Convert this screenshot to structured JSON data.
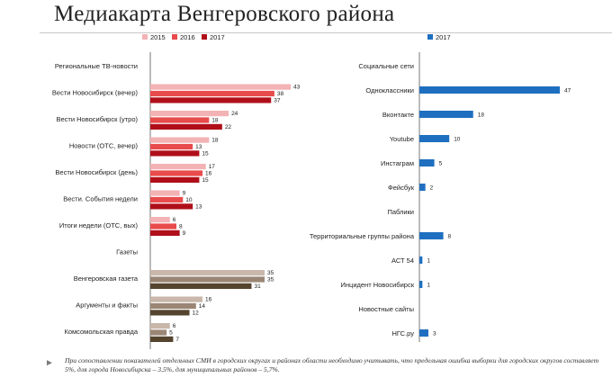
{
  "title": "Медиакарта Венгеровского района",
  "footnote": "При сопоставлении показателей отдельных СМИ в городских округах и районах области необходимо учитывать, что предельная ошибка выборки для городских округов составляет 5%, для города Новосибирска – 3,5%, для муниципальных районов – 5,7%.",
  "chart_data": [
    {
      "type": "bar",
      "orientation": "horizontal",
      "title": "",
      "legend": [
        "2015",
        "2016",
        "2017"
      ],
      "legend_colors": [
        "#f3b2b4",
        "#e84b4b",
        "#b00f1a"
      ],
      "alt_colors": [
        "#c8b7aa",
        "#9a8674",
        "#55452f"
      ],
      "scale_max": 43,
      "categories": [
        {
          "label": "Региональные ТВ-новости",
          "header": true
        },
        {
          "label": "Вести Новосибирск (вечер)",
          "values": [
            43,
            38,
            37
          ]
        },
        {
          "label": "Вести Новосибирск (утро)",
          "values": [
            24,
            18,
            22
          ]
        },
        {
          "label": "Новости (ОТС, вечер)",
          "values": [
            18,
            13,
            15
          ]
        },
        {
          "label": "Вести Новосибирск (день)",
          "values": [
            17,
            16,
            15
          ]
        },
        {
          "label": "Вести. События недели",
          "values": [
            9,
            10,
            13
          ]
        },
        {
          "label": "Итоги недели (ОТС, вых)",
          "values": [
            6,
            8,
            9
          ]
        },
        {
          "label": "Газеты",
          "header": true
        },
        {
          "label": "Венгеровская газета",
          "values": [
            35,
            35,
            31
          ],
          "alt": true
        },
        {
          "label": "Аргументы и факты",
          "values": [
            16,
            14,
            12
          ],
          "alt": true
        },
        {
          "label": "Комсомольская правда",
          "values": [
            6,
            5,
            7
          ],
          "alt": true
        }
      ]
    },
    {
      "type": "bar",
      "orientation": "horizontal",
      "title": "",
      "legend": [
        "2017"
      ],
      "legend_colors": [
        "#1f6fc0"
      ],
      "scale_max": 47,
      "categories": [
        {
          "label": "Социальные сети",
          "header": true
        },
        {
          "label": "Одноклассники",
          "value": 47
        },
        {
          "label": "Вконтакте",
          "value": 18
        },
        {
          "label": "Youtube",
          "value": 10
        },
        {
          "label": "Инстаграм",
          "value": 5
        },
        {
          "label": "Фейсбук",
          "value": 2
        },
        {
          "label": "Паблики",
          "header": true
        },
        {
          "label": "Территориальные группы района",
          "value": 8
        },
        {
          "label": "АСТ 54",
          "value": 1
        },
        {
          "label": "Инцидент Новосибирск",
          "value": 1
        },
        {
          "label": "Новостные сайты",
          "header": true
        },
        {
          "label": "НГС.ру",
          "value": 3
        }
      ]
    }
  ]
}
